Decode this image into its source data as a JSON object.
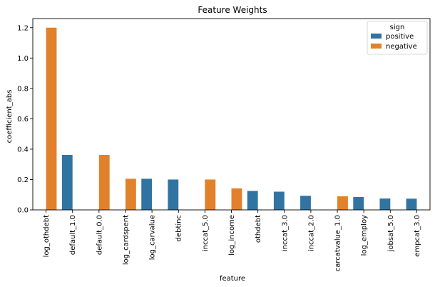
{
  "chart_data": {
    "type": "bar",
    "title": "Feature Weights",
    "xlabel": "feature",
    "ylabel": "coefficient_abs",
    "ylim": [
      0,
      1.26
    ],
    "yticks": [
      0.0,
      0.2,
      0.4,
      0.6,
      0.8,
      1.0,
      1.2
    ],
    "ytick_labels": [
      "0.0",
      "0.2",
      "0.4",
      "0.6",
      "0.8",
      "1.0",
      "1.2"
    ],
    "grid": false,
    "categories": [
      "log_othdebt",
      "default_1.0",
      "default_0.0",
      "log_cardspent",
      "log_carvalue",
      "debtinc",
      "inccat_5.0",
      "log_income",
      "othdebt",
      "inccat_3.0",
      "inccat_2.0",
      "carcatvalue_1.0",
      "log_employ",
      "jobsat_5.0",
      "empcat_3.0"
    ],
    "series": [
      {
        "name": "positive",
        "color": "#3274a1",
        "values": [
          null,
          0.362,
          null,
          null,
          0.205,
          0.2,
          null,
          null,
          0.125,
          0.12,
          0.093,
          null,
          0.085,
          0.075,
          0.074
        ]
      },
      {
        "name": "negative",
        "color": "#e1812c",
        "values": [
          1.2,
          null,
          0.362,
          0.205,
          null,
          null,
          0.2,
          0.142,
          null,
          null,
          null,
          0.09,
          null,
          null,
          null
        ]
      }
    ],
    "legend": {
      "title": "sign",
      "placement": "top-right"
    }
  }
}
